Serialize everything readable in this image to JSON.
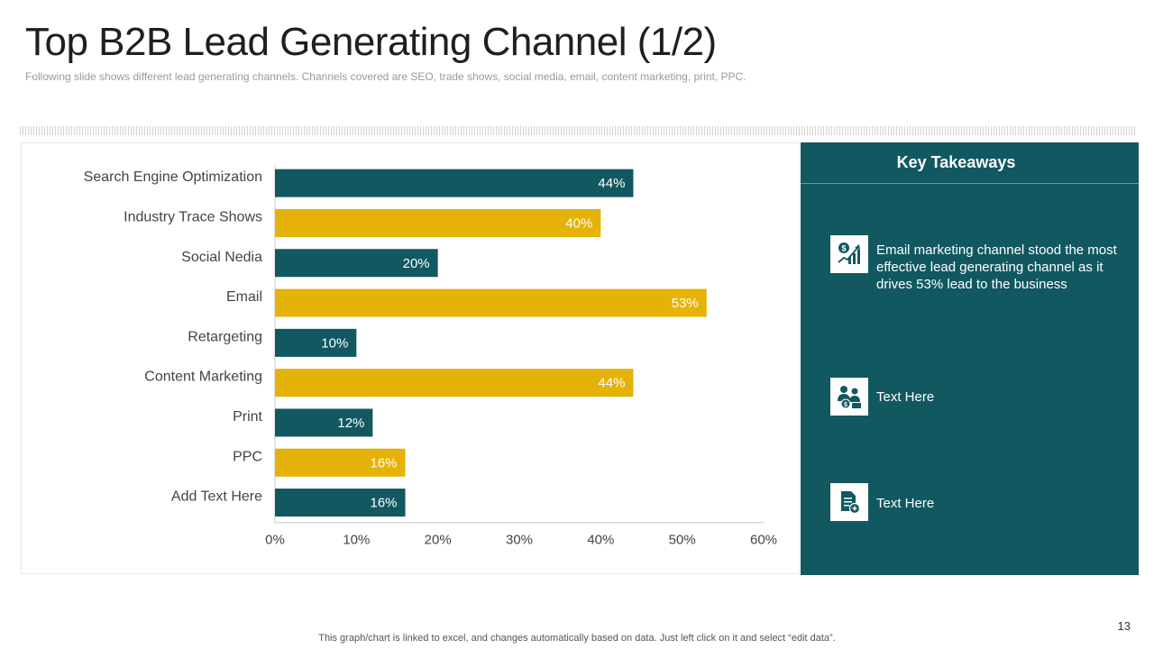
{
  "title": "Top B2B Lead Generating Channel (1/2)",
  "subtitle": "Following slide shows different  lead generating channels. Channels covered  are SEO, trade shows, social media, email, content marketing, print, PPC.",
  "colors": {
    "teal": "#125861",
    "gold": "#E5B307"
  },
  "chart_data": {
    "type": "bar",
    "orientation": "horizontal",
    "categories": [
      "Search Engine Optimization",
      "Industry Trace Shows",
      "Social Nedia",
      "Email",
      "Retargeting",
      "Content Marketing",
      "Print",
      "PPC",
      "Add Text Here"
    ],
    "values": [
      44,
      40,
      20,
      53,
      10,
      44,
      12,
      16,
      16
    ],
    "data_labels": [
      "44%",
      "40%",
      "20%",
      "53%",
      "10%",
      "44%",
      "12%",
      "16%",
      "16%"
    ],
    "bar_colors": [
      "#125861",
      "#E5B307",
      "#125861",
      "#E5B307",
      "#125861",
      "#E5B307",
      "#125861",
      "#E5B307",
      "#125861"
    ],
    "xticks": [
      "0%",
      "10%",
      "20%",
      "30%",
      "40%",
      "50%",
      "60%"
    ],
    "xlim": [
      0,
      60
    ],
    "title": "",
    "xlabel": "",
    "ylabel": "",
    "grid": false,
    "legend": "none"
  },
  "takeaways": {
    "heading": "Key Takeaways",
    "items": [
      {
        "icon": "money-growth-chart-icon",
        "text": "Email marketing channel stood the most effective lead generating channel as it drives 53% lead to the business"
      },
      {
        "icon": "people-money-icon",
        "text": "Text Here"
      },
      {
        "icon": "document-add-icon",
        "text": "Text Here"
      }
    ]
  },
  "footer": "This graph/chart is linked to excel,  and changes automatically based on data. Just left click on it and select “edit data”.",
  "page_number": "13"
}
